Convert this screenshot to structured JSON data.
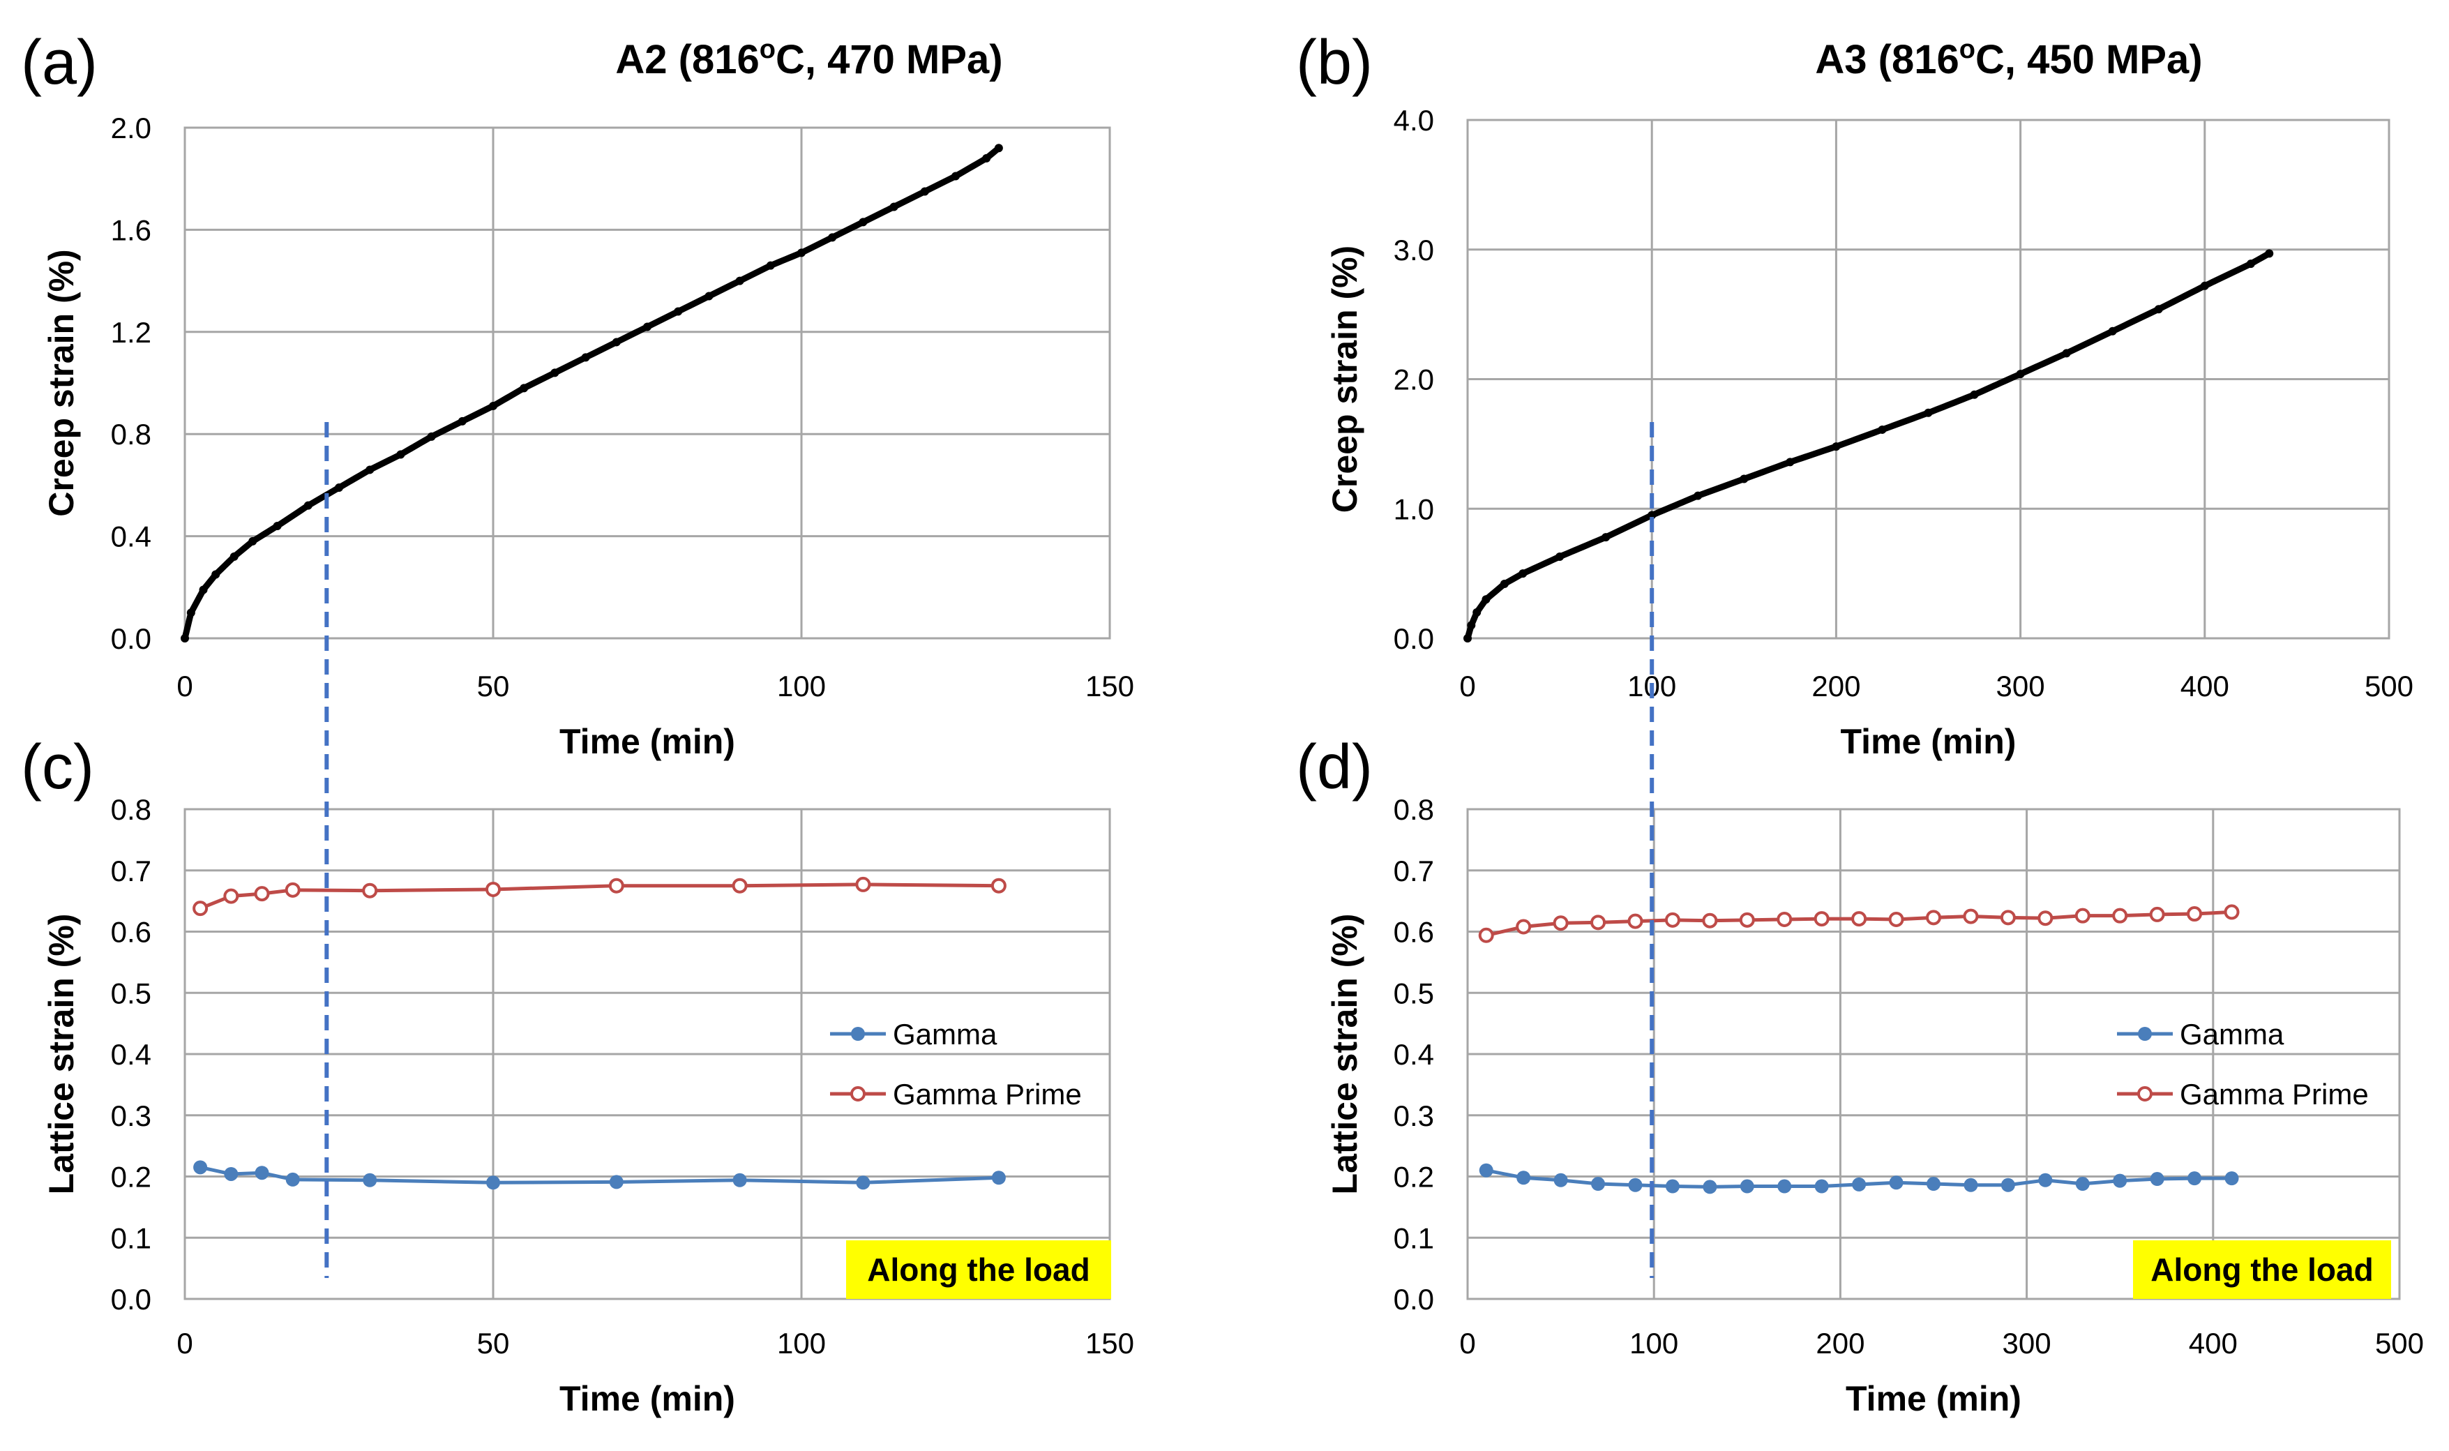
{
  "chart_data": [
    {
      "panel": "(a)",
      "type": "line",
      "title": "A2 (816",
      "title_sup": "o",
      "title_suffix": "C, 470 MPa)",
      "xlabel": "Time (min)",
      "ylabel": "Creep strain (%)",
      "xlim": [
        0,
        150
      ],
      "ylim": [
        0,
        2.0
      ],
      "xticks": [
        "0",
        "50",
        "100",
        "150"
      ],
      "yticks": [
        "0.0",
        "0.4",
        "0.8",
        "1.2",
        "1.6",
        "2.0"
      ],
      "grid": true,
      "marker_color": "#000000",
      "series": [
        {
          "name": "Creep strain",
          "x": [
            0,
            1,
            3,
            5,
            8,
            11,
            15,
            20,
            25,
            30,
            35,
            40,
            45,
            50,
            55,
            60,
            65,
            70,
            75,
            80,
            85,
            90,
            95,
            100,
            105,
            110,
            115,
            120,
            125,
            130,
            132
          ],
          "y": [
            0.0,
            0.1,
            0.19,
            0.25,
            0.32,
            0.38,
            0.44,
            0.52,
            0.59,
            0.66,
            0.72,
            0.79,
            0.85,
            0.91,
            0.98,
            1.04,
            1.1,
            1.16,
            1.22,
            1.28,
            1.34,
            1.4,
            1.46,
            1.51,
            1.57,
            1.63,
            1.69,
            1.75,
            1.81,
            1.88,
            1.92
          ]
        }
      ],
      "marker_line_x": 23
    },
    {
      "panel": "(b)",
      "type": "line",
      "title": "A3 (816",
      "title_sup": "o",
      "title_suffix": "C, 450 MPa)",
      "xlabel": "Time (min)",
      "ylabel": "Creep strain (%)",
      "xlim": [
        0,
        500
      ],
      "ylim": [
        0,
        4.0
      ],
      "xticks": [
        "0",
        "100",
        "200",
        "300",
        "400",
        "500"
      ],
      "yticks": [
        "0.0",
        "1.0",
        "2.0",
        "3.0",
        "4.0"
      ],
      "grid": true,
      "marker_color": "#000000",
      "series": [
        {
          "name": "Creep strain",
          "x": [
            0,
            2,
            5,
            10,
            20,
            30,
            50,
            75,
            100,
            125,
            150,
            175,
            200,
            225,
            250,
            275,
            300,
            325,
            350,
            375,
            400,
            425,
            435
          ],
          "y": [
            0.0,
            0.1,
            0.2,
            0.3,
            0.42,
            0.5,
            0.63,
            0.78,
            0.95,
            1.1,
            1.23,
            1.36,
            1.48,
            1.61,
            1.74,
            1.88,
            2.04,
            2.2,
            2.37,
            2.54,
            2.72,
            2.89,
            2.97
          ]
        }
      ],
      "marker_line_x": 100
    },
    {
      "panel": "(c)",
      "type": "line",
      "title": "",
      "xlabel": "Time (min)",
      "ylabel": "Lattice strain (%)",
      "xlim": [
        0,
        150
      ],
      "ylim": [
        0,
        0.8
      ],
      "xticks": [
        "0",
        "50",
        "100",
        "150"
      ],
      "yticks": [
        "0.0",
        "0.1",
        "0.2",
        "0.3",
        "0.4",
        "0.5",
        "0.6",
        "0.7",
        "0.8"
      ],
      "grid": true,
      "legend_position": "right",
      "annotation": "Along the load",
      "annotation_bg": "#ffff00",
      "series": [
        {
          "name": "Gamma",
          "color": "#4a7ebb",
          "marker": "filled-circle",
          "x": [
            2.5,
            7.5,
            12.5,
            17.5,
            30,
            50,
            70,
            90,
            110,
            132
          ],
          "y": [
            0.215,
            0.204,
            0.206,
            0.195,
            0.194,
            0.19,
            0.191,
            0.194,
            0.19,
            0.198
          ]
        },
        {
          "name": "Gamma Prime",
          "color": "#be4b48",
          "marker": "open-circle",
          "x": [
            2.5,
            7.5,
            12.5,
            17.5,
            30,
            50,
            70,
            90,
            110,
            132
          ],
          "y": [
            0.638,
            0.658,
            0.662,
            0.668,
            0.667,
            0.669,
            0.675,
            0.675,
            0.677,
            0.675
          ]
        }
      ],
      "marker_line_x": 23
    },
    {
      "panel": "(d)",
      "type": "line",
      "title": "",
      "xlabel": "Time (min)",
      "ylabel": "Lattice strain (%)",
      "xlim": [
        0,
        500
      ],
      "ylim": [
        0,
        0.8
      ],
      "xticks": [
        "0",
        "100",
        "200",
        "300",
        "400",
        "500"
      ],
      "yticks": [
        "0.0",
        "0.1",
        "0.2",
        "0.3",
        "0.4",
        "0.5",
        "0.6",
        "0.7",
        "0.8"
      ],
      "grid": true,
      "legend_position": "right",
      "annotation": "Along the load",
      "annotation_bg": "#ffff00",
      "series": [
        {
          "name": "Gamma",
          "color": "#4a7ebb",
          "marker": "filled-circle",
          "x": [
            10,
            30,
            50,
            70,
            90,
            110,
            130,
            150,
            170,
            190,
            210,
            230,
            250,
            270,
            290,
            310,
            330,
            350,
            370,
            390,
            410
          ],
          "y": [
            0.21,
            0.198,
            0.194,
            0.188,
            0.186,
            0.184,
            0.183,
            0.184,
            0.184,
            0.184,
            0.187,
            0.19,
            0.188,
            0.186,
            0.186,
            0.194,
            0.188,
            0.193,
            0.196,
            0.197,
            0.197
          ]
        },
        {
          "name": "Gamma Prime",
          "color": "#be4b48",
          "marker": "open-circle",
          "x": [
            10,
            30,
            50,
            70,
            90,
            110,
            130,
            150,
            170,
            190,
            210,
            230,
            250,
            270,
            290,
            310,
            330,
            350,
            370,
            390,
            410
          ],
          "y": [
            0.594,
            0.608,
            0.614,
            0.615,
            0.617,
            0.619,
            0.618,
            0.619,
            0.62,
            0.621,
            0.621,
            0.62,
            0.623,
            0.625,
            0.623,
            0.622,
            0.626,
            0.626,
            0.628,
            0.629,
            0.632
          ]
        }
      ],
      "marker_line_x": 100
    }
  ],
  "colors": {
    "grid": "#a6a6a6",
    "dashed_line": "#4472c4"
  }
}
